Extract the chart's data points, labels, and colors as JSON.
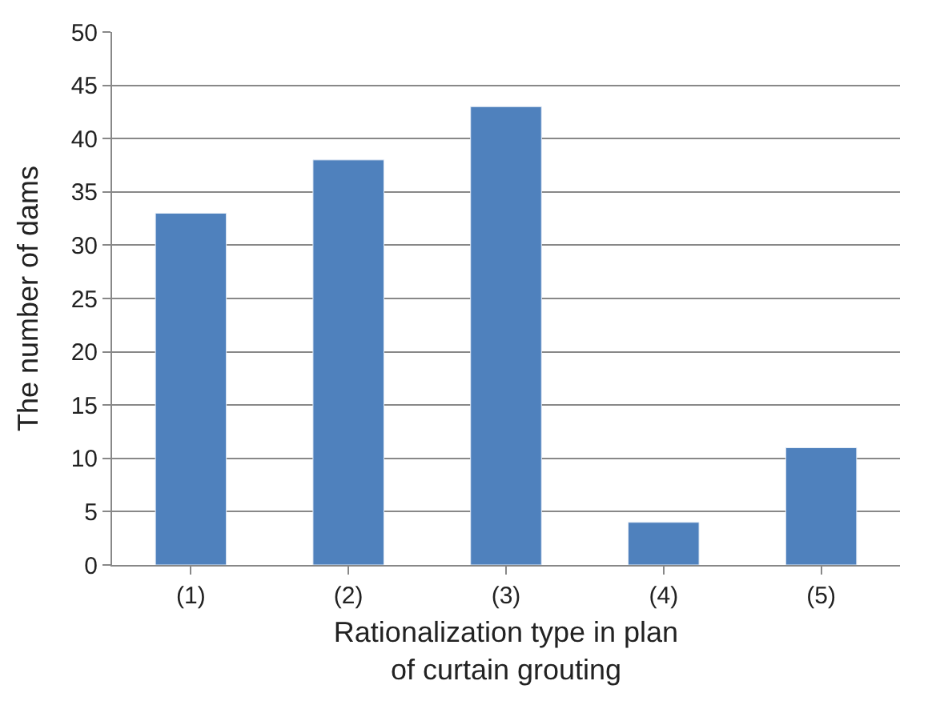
{
  "chart_data": {
    "type": "bar",
    "xlabel": "Rationalization type in plan of curtain grouting",
    "ylabel": "The number of dams",
    "categories": [
      "(1)",
      "(2)",
      "(3)",
      "(4)",
      "(5)"
    ],
    "values": [
      33,
      38,
      43,
      4,
      11
    ],
    "color": "#4f81bd",
    "ylim": [
      0,
      50
    ],
    "yticks": [
      0,
      5,
      10,
      15,
      20,
      25,
      30,
      35,
      40,
      45,
      50
    ],
    "grid": "y",
    "legend": false
  }
}
